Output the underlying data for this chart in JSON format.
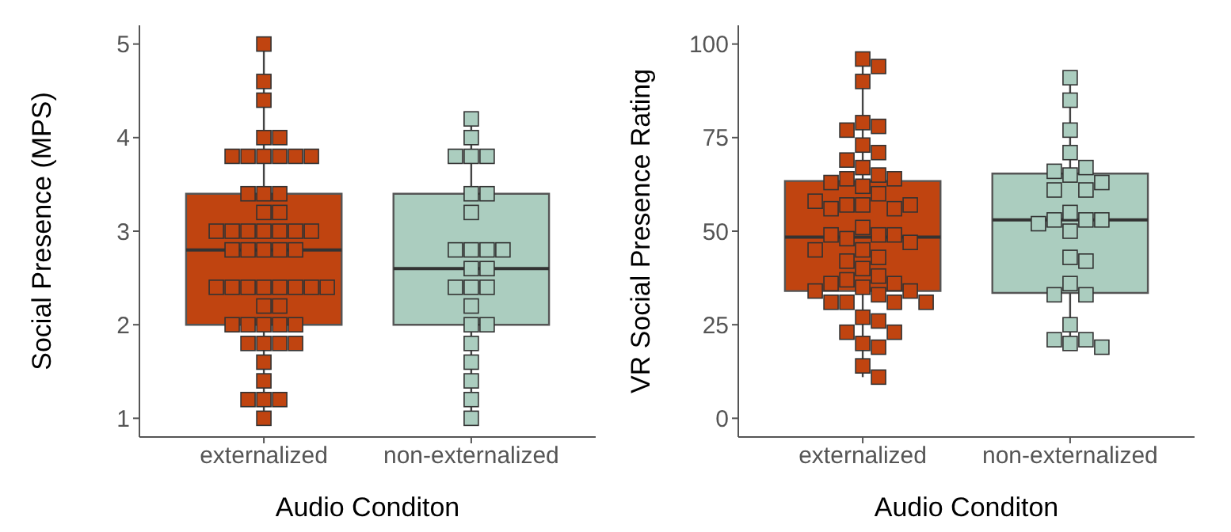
{
  "chart_data": [
    {
      "type": "box",
      "xlabel": "Audio Conditon",
      "ylabel": "Social Presence (MPS)",
      "categories": [
        "externalized",
        "non-externalized"
      ],
      "colors": [
        "#c04410",
        "#abcdbf"
      ],
      "ylim": [
        0.8,
        5.2
      ],
      "yticks": [
        1,
        2,
        3,
        4,
        5
      ],
      "grid": false,
      "legend": false,
      "marker": "square",
      "boxes": [
        {
          "low": 1,
          "q1": 2,
          "median": 2.8,
          "q3": 3.4,
          "high": 5
        },
        {
          "low": 1,
          "q1": 2,
          "median": 2.6,
          "q3": 3.4,
          "high": 4.2
        }
      ],
      "series": [
        {
          "type": "scatter",
          "color": "#c04410",
          "x": [
            "externalized",
            "externalized",
            "externalized",
            "externalized",
            "externalized",
            "externalized",
            "externalized",
            "externalized",
            "externalized",
            "externalized",
            "externalized",
            "externalized",
            "externalized",
            "externalized",
            "externalized",
            "externalized",
            "externalized",
            "externalized",
            "externalized",
            "externalized",
            "externalized",
            "externalized",
            "externalized",
            "externalized",
            "externalized",
            "externalized",
            "externalized",
            "externalized",
            "externalized",
            "externalized",
            "externalized",
            "externalized",
            "externalized",
            "externalized",
            "externalized",
            "externalized",
            "externalized",
            "externalized",
            "externalized",
            "externalized",
            "externalized",
            "externalized",
            "externalized",
            "externalized",
            "externalized",
            "externalized",
            "externalized",
            "externalized",
            "externalized",
            "externalized",
            "externalized",
            "externalized",
            "externalized"
          ],
          "values": [
            5,
            4.6,
            4.4,
            4,
            4,
            3.8,
            3.8,
            3.8,
            3.8,
            3.8,
            3.8,
            3.4,
            3.4,
            3.4,
            3.2,
            3.2,
            3,
            3,
            3,
            3,
            3,
            3,
            3,
            2.8,
            2.8,
            2.8,
            2.8,
            2.8,
            2.4,
            2.4,
            2.4,
            2.4,
            2.4,
            2.4,
            2.4,
            2.4,
            2.2,
            2.2,
            2,
            2,
            2,
            2,
            2,
            1.8,
            1.8,
            1.8,
            1.8,
            1.6,
            1.4,
            1.2,
            1.2,
            1.2,
            1
          ]
        },
        {
          "type": "scatter",
          "color": "#abcdbf",
          "x": [
            "non-externalized",
            "non-externalized",
            "non-externalized",
            "non-externalized",
            "non-externalized",
            "non-externalized",
            "non-externalized",
            "non-externalized",
            "non-externalized",
            "non-externalized",
            "non-externalized",
            "non-externalized",
            "non-externalized",
            "non-externalized",
            "non-externalized",
            "non-externalized",
            "non-externalized",
            "non-externalized",
            "non-externalized",
            "non-externalized",
            "non-externalized",
            "non-externalized",
            "non-externalized",
            "non-externalized",
            "non-externalized"
          ],
          "values": [
            4.2,
            4,
            3.8,
            3.8,
            3.8,
            3.4,
            3.4,
            3.2,
            2.8,
            2.8,
            2.8,
            2.8,
            2.6,
            2.6,
            2.4,
            2.4,
            2.4,
            2.2,
            2,
            2,
            1.8,
            1.6,
            1.4,
            1.2,
            1
          ]
        }
      ]
    },
    {
      "type": "box",
      "xlabel": "Audio Conditon",
      "ylabel": "VR Social Presence Rating",
      "categories": [
        "externalized",
        "non-externalized"
      ],
      "colors": [
        "#c04410",
        "#abcdbf"
      ],
      "ylim": [
        -5,
        105
      ],
      "yticks": [
        0,
        25,
        50,
        75,
        100
      ],
      "grid": false,
      "legend": false,
      "marker": "square",
      "boxes": [
        {
          "low": 11,
          "q1": 34,
          "median": 48.4,
          "q3": 63.4,
          "high": 96
        },
        {
          "low": 19,
          "q1": 33.5,
          "median": 53,
          "q3": 65.4,
          "high": 91
        }
      ],
      "series": [
        {
          "type": "scatter",
          "color": "#c04410",
          "x": [
            "externalized",
            "externalized",
            "externalized",
            "externalized",
            "externalized",
            "externalized",
            "externalized",
            "externalized",
            "externalized",
            "externalized",
            "externalized",
            "externalized",
            "externalized",
            "externalized",
            "externalized",
            "externalized",
            "externalized",
            "externalized",
            "externalized",
            "externalized",
            "externalized",
            "externalized",
            "externalized",
            "externalized",
            "externalized",
            "externalized",
            "externalized",
            "externalized",
            "externalized",
            "externalized",
            "externalized",
            "externalized",
            "externalized",
            "externalized",
            "externalized",
            "externalized",
            "externalized",
            "externalized",
            "externalized",
            "externalized",
            "externalized",
            "externalized",
            "externalized",
            "externalized",
            "externalized",
            "externalized",
            "externalized",
            "externalized",
            "externalized",
            "externalized",
            "externalized",
            "externalized",
            "externalized"
          ],
          "values": [
            96,
            94,
            90,
            79,
            78,
            77,
            73,
            71,
            69,
            67,
            65,
            64,
            64,
            63,
            62,
            60,
            57,
            57,
            56,
            56,
            57,
            58,
            51,
            49,
            48,
            49,
            49,
            47,
            45,
            45,
            43,
            42,
            40,
            38,
            37,
            36,
            36,
            35,
            34,
            34,
            33,
            31,
            31,
            31,
            31,
            27,
            26,
            23,
            23,
            20,
            19,
            14,
            11
          ]
        },
        {
          "type": "scatter",
          "color": "#abcdbf",
          "x": [
            "non-externalized",
            "non-externalized",
            "non-externalized",
            "non-externalized",
            "non-externalized",
            "non-externalized",
            "non-externalized",
            "non-externalized",
            "non-externalized",
            "non-externalized",
            "non-externalized",
            "non-externalized",
            "non-externalized",
            "non-externalized",
            "non-externalized",
            "non-externalized",
            "non-externalized",
            "non-externalized",
            "non-externalized",
            "non-externalized",
            "non-externalized",
            "non-externalized",
            "non-externalized",
            "non-externalized",
            "non-externalized",
            "non-externalized"
          ],
          "values": [
            91,
            85,
            77,
            71,
            67,
            65,
            66,
            63,
            61,
            61,
            55,
            53,
            53,
            53,
            52,
            50,
            43,
            42,
            36,
            33,
            33,
            25,
            20,
            21,
            21,
            19
          ]
        }
      ]
    }
  ]
}
